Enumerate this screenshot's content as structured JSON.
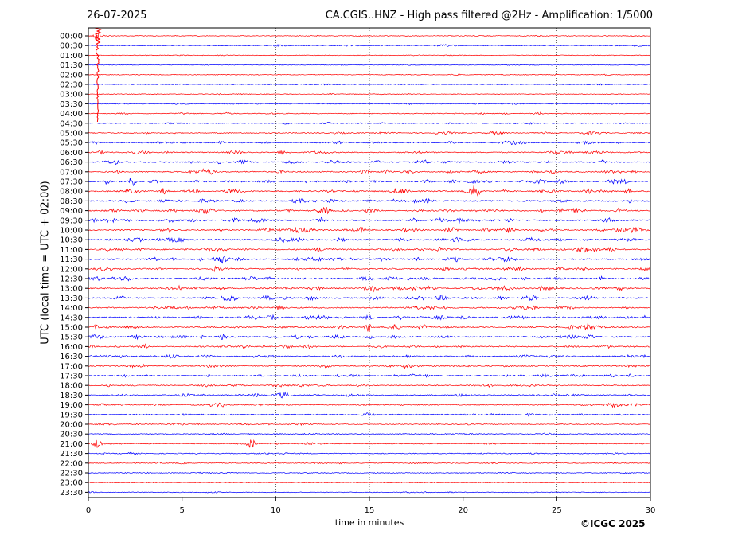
{
  "header": {
    "date": "26-07-2025",
    "title": "CA.CGIS..HNZ - High pass filtered @2Hz - Amplification: 1/5000"
  },
  "footer": {
    "copyright": "©ICGC 2025"
  },
  "chart_data": {
    "type": "line",
    "title": "CA.CGIS..HNZ - High pass filtered @2Hz - Amplification: 1/5000",
    "xlabel": "time in minutes",
    "ylabel": "UTC (local time = UTC + 02:00)",
    "xlim": [
      0,
      30
    ],
    "x_ticks": [
      0,
      5,
      10,
      15,
      20,
      25,
      30
    ],
    "x_tick_labels": [
      "0",
      "5",
      "10",
      "15",
      "20",
      "25",
      "30"
    ],
    "vertical_grid": "dotted at each 5 minutes",
    "row_labels": [
      "00:00",
      "00:30",
      "01:00",
      "01:30",
      "02:00",
      "02:30",
      "03:00",
      "03:30",
      "04:00",
      "04:30",
      "05:00",
      "05:30",
      "06:00",
      "06:30",
      "07:00",
      "07:30",
      "08:00",
      "08:30",
      "09:00",
      "09:30",
      "10:00",
      "10:30",
      "11:00",
      "11:30",
      "12:00",
      "12:30",
      "13:00",
      "13:30",
      "14:00",
      "14:30",
      "15:00",
      "15:30",
      "16:00",
      "16:30",
      "17:00",
      "17:30",
      "18:00",
      "18:30",
      "19:00",
      "19:30",
      "20:00",
      "20:30",
      "21:00",
      "21:30",
      "22:00",
      "22:30",
      "23:00",
      "23:30"
    ],
    "colors": {
      "hour_rows": "#ff0000",
      "half_hour_rows": "#0000ff"
    },
    "activity": [
      0.15,
      0.25,
      0.1,
      0.15,
      0.15,
      0.15,
      0.15,
      0.2,
      0.25,
      0.3,
      0.45,
      0.55,
      0.6,
      0.65,
      0.7,
      0.75,
      0.8,
      0.75,
      0.8,
      0.75,
      0.8,
      0.75,
      0.8,
      0.75,
      0.7,
      0.75,
      0.8,
      0.75,
      0.7,
      0.75,
      0.7,
      0.7,
      0.65,
      0.65,
      0.6,
      0.55,
      0.55,
      0.55,
      0.5,
      0.45,
      0.35,
      0.35,
      0.3,
      0.3,
      0.25,
      0.2,
      0.15,
      0.15
    ],
    "notable_events": [
      {
        "row": "00:00",
        "minute": 0.5,
        "note": "large signal spanning 00:00 to 04:30 rows"
      },
      {
        "row": "07:30",
        "minute": 2.3
      },
      {
        "row": "08:00",
        "minute": 20.7
      },
      {
        "row": "15:00",
        "minute": 15.0
      },
      {
        "row": "21:00",
        "minute": 0.5
      },
      {
        "row": "21:00",
        "minute": 8.7
      }
    ]
  }
}
